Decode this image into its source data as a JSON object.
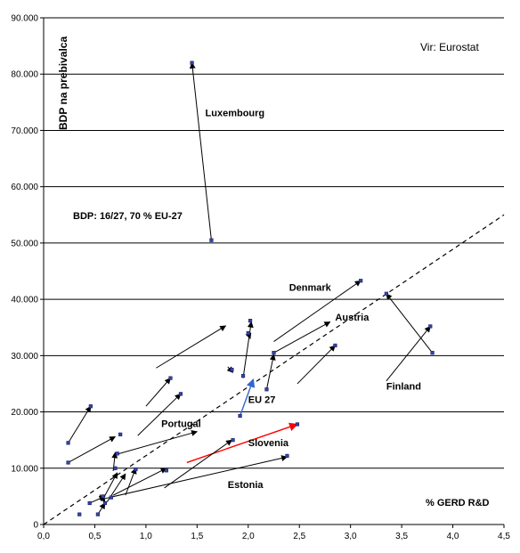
{
  "chart_data": {
    "type": "scatter",
    "title": "",
    "source": "Vir: Eurostat",
    "xlabel": "% GERD R&D",
    "ylabel": "BDP na prebivalca",
    "xlim": [
      0,
      4.5
    ],
    "ylim": [
      0,
      90000
    ],
    "x_ticks": [
      "0,0",
      "0,5",
      "1,0",
      "1,5",
      "2,0",
      "2,5",
      "3,0",
      "3,5",
      "4,0",
      "4,5"
    ],
    "x_tick_values": [
      0,
      0.5,
      1.0,
      1.5,
      2.0,
      2.5,
      3.0,
      3.5,
      4.0,
      4.5
    ],
    "y_ticks": [
      "0",
      "10.000",
      "20.000",
      "30.000",
      "40.000",
      "50.000",
      "60.000",
      "70.000",
      "80.000",
      "90.000"
    ],
    "y_tick_values": [
      0,
      10000,
      20000,
      30000,
      40000,
      50000,
      60000,
      70000,
      80000,
      90000
    ],
    "grid": "horizontal",
    "note": "BDP: 16/27, 70 % EU-27",
    "note_color": "#ff0000",
    "trend_line": {
      "from": [
        0,
        0
      ],
      "to": [
        4.5,
        55000
      ],
      "style": "dashed"
    },
    "annotations": [
      {
        "label": "Luxembourg",
        "x": 1.58,
        "y": 72500
      },
      {
        "label": "Denmark",
        "x": 2.4,
        "y": 41500
      },
      {
        "label": "Austria",
        "x": 2.85,
        "y": 36200
      },
      {
        "label": "Finland",
        "x": 3.35,
        "y": 24000
      },
      {
        "label": "Portugal",
        "x": 1.15,
        "y": 17300
      },
      {
        "label": "EU 27",
        "x": 2.0,
        "y": 21600,
        "color": "#3366cc"
      },
      {
        "label": "Slovenia",
        "x": 2.0,
        "y": 13900,
        "color": "#ff0000"
      },
      {
        "label": "Estonia",
        "x": 1.8,
        "y": 6500
      }
    ],
    "arrows": [
      {
        "from": [
          1.64,
          50500
        ],
        "to": [
          1.45,
          82000
        ],
        "label": "Luxembourg"
      },
      {
        "from": [
          2.25,
          32500
        ],
        "to": [
          3.1,
          43300
        ],
        "label": "Denmark"
      },
      {
        "from": [
          2.25,
          30500
        ],
        "to": [
          2.8,
          36000
        ],
        "label": "Austria"
      },
      {
        "from": [
          3.8,
          30500
        ],
        "to": [
          3.35,
          41000
        ],
        "label": "Finland"
      },
      {
        "from": [
          3.35,
          25500
        ],
        "to": [
          3.78,
          35200
        ],
        "label": "Finland"
      },
      {
        "from": [
          0.72,
          12500
        ],
        "to": [
          1.5,
          16500
        ],
        "label": "Portugal"
      },
      {
        "from": [
          1.92,
          19300
        ],
        "to": [
          2.05,
          25800
        ],
        "label": "EU 27",
        "color": "#3366cc"
      },
      {
        "from": [
          1.4,
          11000
        ],
        "to": [
          2.48,
          17800
        ],
        "label": "Slovenia",
        "color": "#ff0000"
      },
      {
        "from": [
          0.57,
          4500
        ],
        "to": [
          2.38,
          12000
        ],
        "label": "Estonia"
      },
      {
        "from": [
          1.1,
          27800
        ],
        "to": [
          1.78,
          35300
        ]
      },
      {
        "from": [
          1.8,
          28000
        ],
        "to": [
          1.85,
          27000
        ]
      },
      {
        "from": [
          1.95,
          26000
        ],
        "to": [
          2.03,
          36000
        ]
      },
      {
        "from": [
          2.0,
          34000
        ],
        "to": [
          2.02,
          33000
        ]
      },
      {
        "from": [
          2.18,
          24000
        ],
        "to": [
          2.25,
          30200
        ]
      },
      {
        "from": [
          2.48,
          25000
        ],
        "to": [
          2.85,
          31800
        ]
      },
      {
        "from": [
          1.0,
          21000
        ],
        "to": [
          1.24,
          26000
        ]
      },
      {
        "from": [
          0.92,
          15800
        ],
        "to": [
          1.34,
          23200
        ]
      },
      {
        "from": [
          0.24,
          14500
        ],
        "to": [
          0.46,
          21000
        ]
      },
      {
        "from": [
          0.24,
          11000
        ],
        "to": [
          0.7,
          15600
        ]
      },
      {
        "from": [
          0.68,
          9500
        ],
        "to": [
          0.7,
          12800
        ]
      },
      {
        "from": [
          0.58,
          4500
        ],
        "to": [
          0.72,
          9200
        ]
      },
      {
        "from": [
          0.62,
          4000
        ],
        "to": [
          0.8,
          9000
        ]
      },
      {
        "from": [
          0.8,
          5200
        ],
        "to": [
          0.9,
          10000
        ]
      },
      {
        "from": [
          1.18,
          6500
        ],
        "to": [
          1.84,
          15000
        ]
      },
      {
        "from": [
          0.68,
          5200
        ],
        "to": [
          1.2,
          10000
        ]
      },
      {
        "from": [
          0.55,
          5300
        ],
        "to": [
          0.6,
          4000
        ]
      },
      {
        "from": [
          0.45,
          3800
        ],
        "to": [
          0.6,
          5000
        ]
      },
      {
        "from": [
          0.53,
          1800
        ],
        "to": [
          0.6,
          3800
        ]
      }
    ],
    "points": [
      {
        "x": 0.35,
        "y": 1800
      },
      {
        "x": 0.45,
        "y": 3800
      },
      {
        "x": 0.53,
        "y": 1800
      },
      {
        "x": 0.58,
        "y": 5000
      },
      {
        "x": 0.6,
        "y": 3800
      },
      {
        "x": 0.66,
        "y": 4800
      },
      {
        "x": 0.7,
        "y": 10000
      },
      {
        "x": 0.72,
        "y": 12600
      },
      {
        "x": 0.75,
        "y": 16000
      },
      {
        "x": 0.9,
        "y": 9800
      },
      {
        "x": 1.2,
        "y": 9600
      },
      {
        "x": 1.85,
        "y": 15000
      },
      {
        "x": 2.38,
        "y": 12200
      },
      {
        "x": 2.48,
        "y": 17800
      },
      {
        "x": 1.84,
        "y": 27500
      },
      {
        "x": 1.95,
        "y": 26400
      },
      {
        "x": 2.0,
        "y": 34000
      },
      {
        "x": 2.02,
        "y": 36200
      },
      {
        "x": 2.25,
        "y": 30500
      },
      {
        "x": 2.18,
        "y": 24000
      },
      {
        "x": 1.34,
        "y": 23200
      },
      {
        "x": 1.24,
        "y": 26000
      },
      {
        "x": 0.46,
        "y": 21000
      },
      {
        "x": 0.24,
        "y": 14500
      },
      {
        "x": 0.24,
        "y": 11000
      },
      {
        "x": 3.1,
        "y": 43300
      },
      {
        "x": 2.85,
        "y": 31800
      },
      {
        "x": 3.78,
        "y": 35200
      },
      {
        "x": 3.8,
        "y": 30500
      },
      {
        "x": 3.35,
        "y": 41000
      },
      {
        "x": 1.64,
        "y": 50500
      },
      {
        "x": 1.45,
        "y": 82000
      },
      {
        "x": 1.92,
        "y": 19300
      }
    ]
  }
}
